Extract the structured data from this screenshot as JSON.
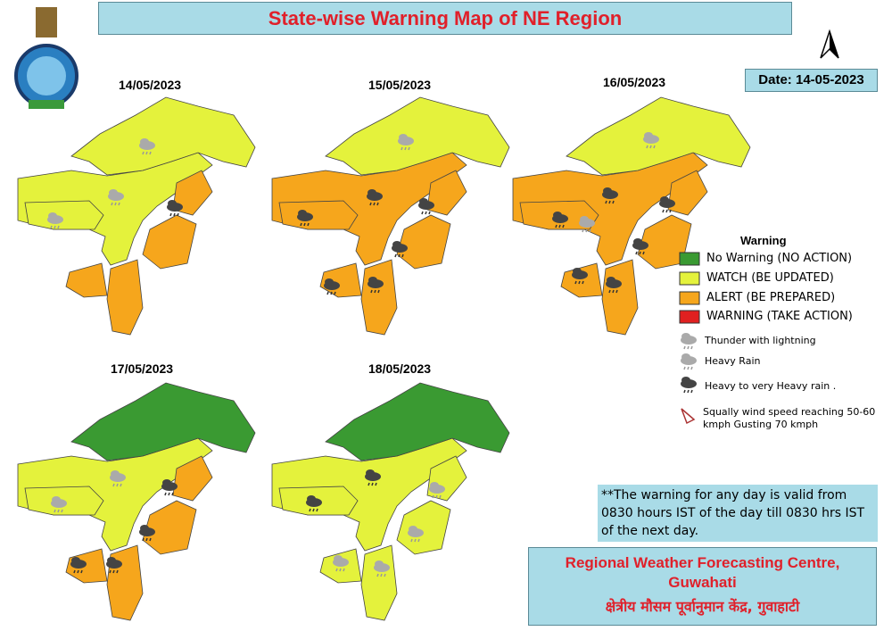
{
  "header": {
    "title": "State-wise Warning Map of NE Region",
    "date": "Date: 14-05-2023"
  },
  "maps": [
    {
      "date": "14/05/2023"
    },
    {
      "date": "15/05/2023"
    },
    {
      "date": "16/05/2023"
    },
    {
      "date": "17/05/2023"
    },
    {
      "date": "18/05/2023"
    }
  ],
  "legend": {
    "title": "Warning",
    "levels": [
      "No Warning (NO ACTION)",
      "WATCH (BE UPDATED)",
      "ALERT (BE PREPARED)",
      "WARNING (TAKE ACTION)"
    ],
    "icons": [
      "Thunder with lightning",
      "Heavy Rain",
      "Heavy to very Heavy rain .",
      "Squally wind speed reaching 50-60 kmph Gusting 70 kmph"
    ]
  },
  "note": "**The warning for any day is valid from 0830 hours IST of the day till 0830 hrs IST of the next day.",
  "footer": {
    "name": "Regional Weather Forecasting Centre, Guwahati",
    "hindi": "क्षेत्रीय मौसम पूर्वानुमान केंद्र, गुवाहाटी"
  }
}
